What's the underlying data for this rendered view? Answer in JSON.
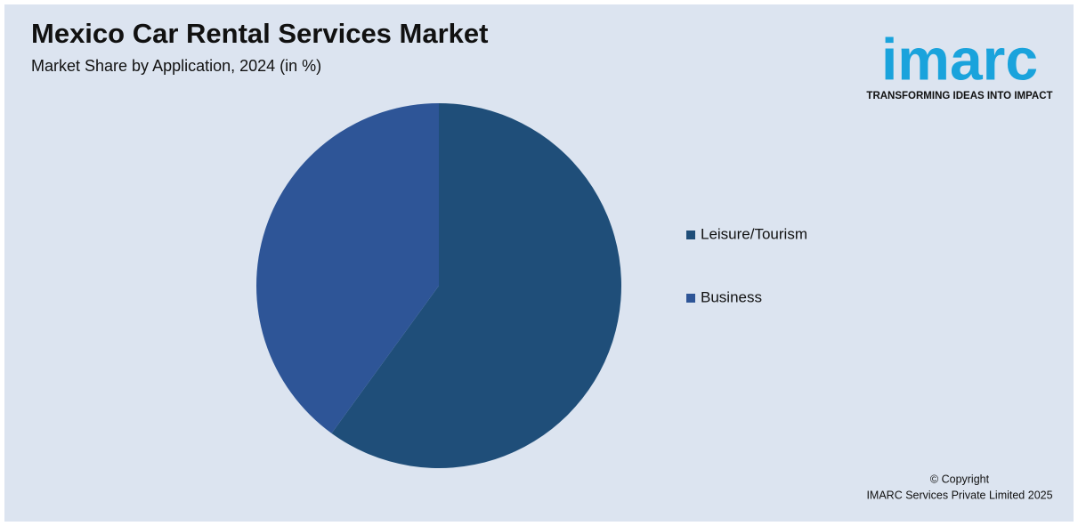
{
  "chart_data": {
    "type": "pie",
    "title": "Mexico Car Rental Services Market",
    "subtitle": "Market Share by Application, 2024 (in %)",
    "categories": [
      "Leisure/Tourism",
      "Business"
    ],
    "values": [
      60,
      40
    ],
    "colors": [
      "#1f4e79",
      "#2e5597"
    ]
  },
  "logo": {
    "name": "imarc",
    "tagline": "TRANSFORMING IDEAS INTO IMPACT"
  },
  "footer": {
    "copyright": "© Copyright",
    "company": "IMARC Services Private Limited 2025"
  }
}
